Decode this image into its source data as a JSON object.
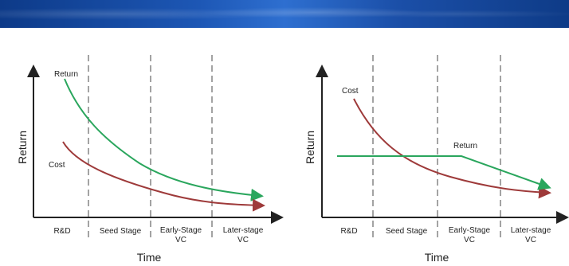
{
  "colors": {
    "banner": "#1d57b5",
    "return_curve": "#2aa65d",
    "cost_curve": "#9e3a3a",
    "axis": "#222222",
    "divider": "#666666"
  },
  "diagrams": [
    {
      "ylabel": "Return",
      "xlabel": "Time",
      "curve_labels": {
        "return": "Return",
        "cost": "Cost"
      },
      "stages": {
        "rd": "R&D",
        "seed": "Seed Stage",
        "early_line1": "Early-Stage",
        "early_line2": "VC",
        "later_line1": "Later-stage",
        "later_line2": "VC"
      }
    },
    {
      "ylabel": "Return",
      "xlabel": "Time",
      "curve_labels": {
        "return": "Return",
        "cost": "Cost"
      },
      "stages": {
        "rd": "R&D",
        "seed": "Seed Stage",
        "early_line1": "Early-Stage",
        "early_line2": "VC",
        "later_line1": "Later-stage",
        "later_line2": "VC"
      }
    }
  ]
}
